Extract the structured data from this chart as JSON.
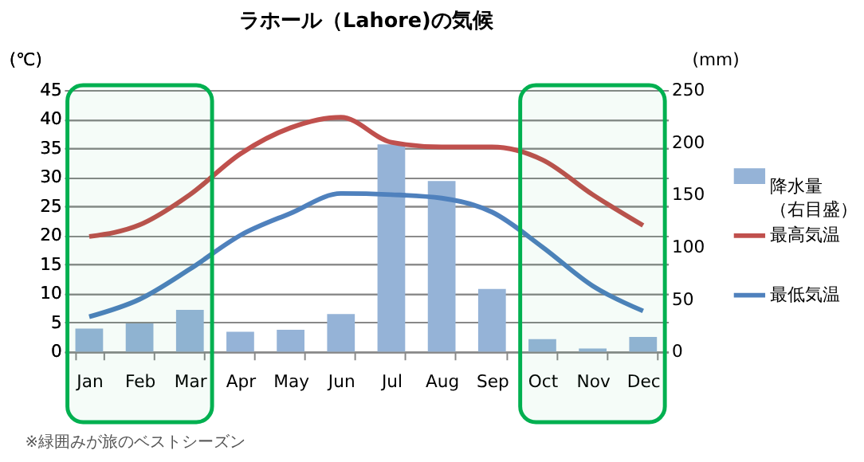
{
  "chart_data": {
    "type": "bar",
    "title": "ラホール（Lahore)の気候",
    "ylabel": "(℃)",
    "y2label": "(mm)",
    "categories": [
      "Jan",
      "Feb",
      "Mar",
      "Apr",
      "May",
      "Jun",
      "Jul",
      "Aug",
      "Sep",
      "Oct",
      "Nov",
      "Dec"
    ],
    "series": [
      {
        "name": "降水量（右目盛）",
        "axis": "y2",
        "color": "#95b3d7",
        "values": [
          22,
          27,
          40,
          19,
          21,
          36,
          198,
          163,
          60,
          12,
          3,
          14
        ]
      },
      {
        "name": "最高気温",
        "type": "line",
        "color": "#c0504d",
        "values": [
          19.8,
          21.8,
          27,
          34,
          38.5,
          40.3,
          36,
          35.2,
          35.2,
          33,
          27,
          21.7
        ]
      },
      {
        "name": "最低気温",
        "type": "line",
        "color": "#4f81bd",
        "values": [
          6,
          9,
          14.2,
          20,
          23.8,
          27.2,
          27,
          26.4,
          24,
          18,
          11.3,
          7
        ]
      }
    ],
    "ylim": [
      0,
      45
    ],
    "yticks": [
      0,
      5,
      10,
      15,
      20,
      25,
      30,
      35,
      40,
      45
    ],
    "y2lim": [
      0,
      250
    ],
    "y2ticks": [
      0,
      50,
      100,
      150,
      200,
      250
    ],
    "grid": "y",
    "legend": "right",
    "bands": [
      {
        "axis": "x",
        "from": "Jan",
        "to": "Mar",
        "label": null,
        "color": "#00b050"
      },
      {
        "axis": "x",
        "from": "Oct",
        "to": "Dec",
        "label": null,
        "color": "#00b050"
      }
    ],
    "annotations": [
      "※緑囲みが旅のベストシーズン"
    ]
  }
}
